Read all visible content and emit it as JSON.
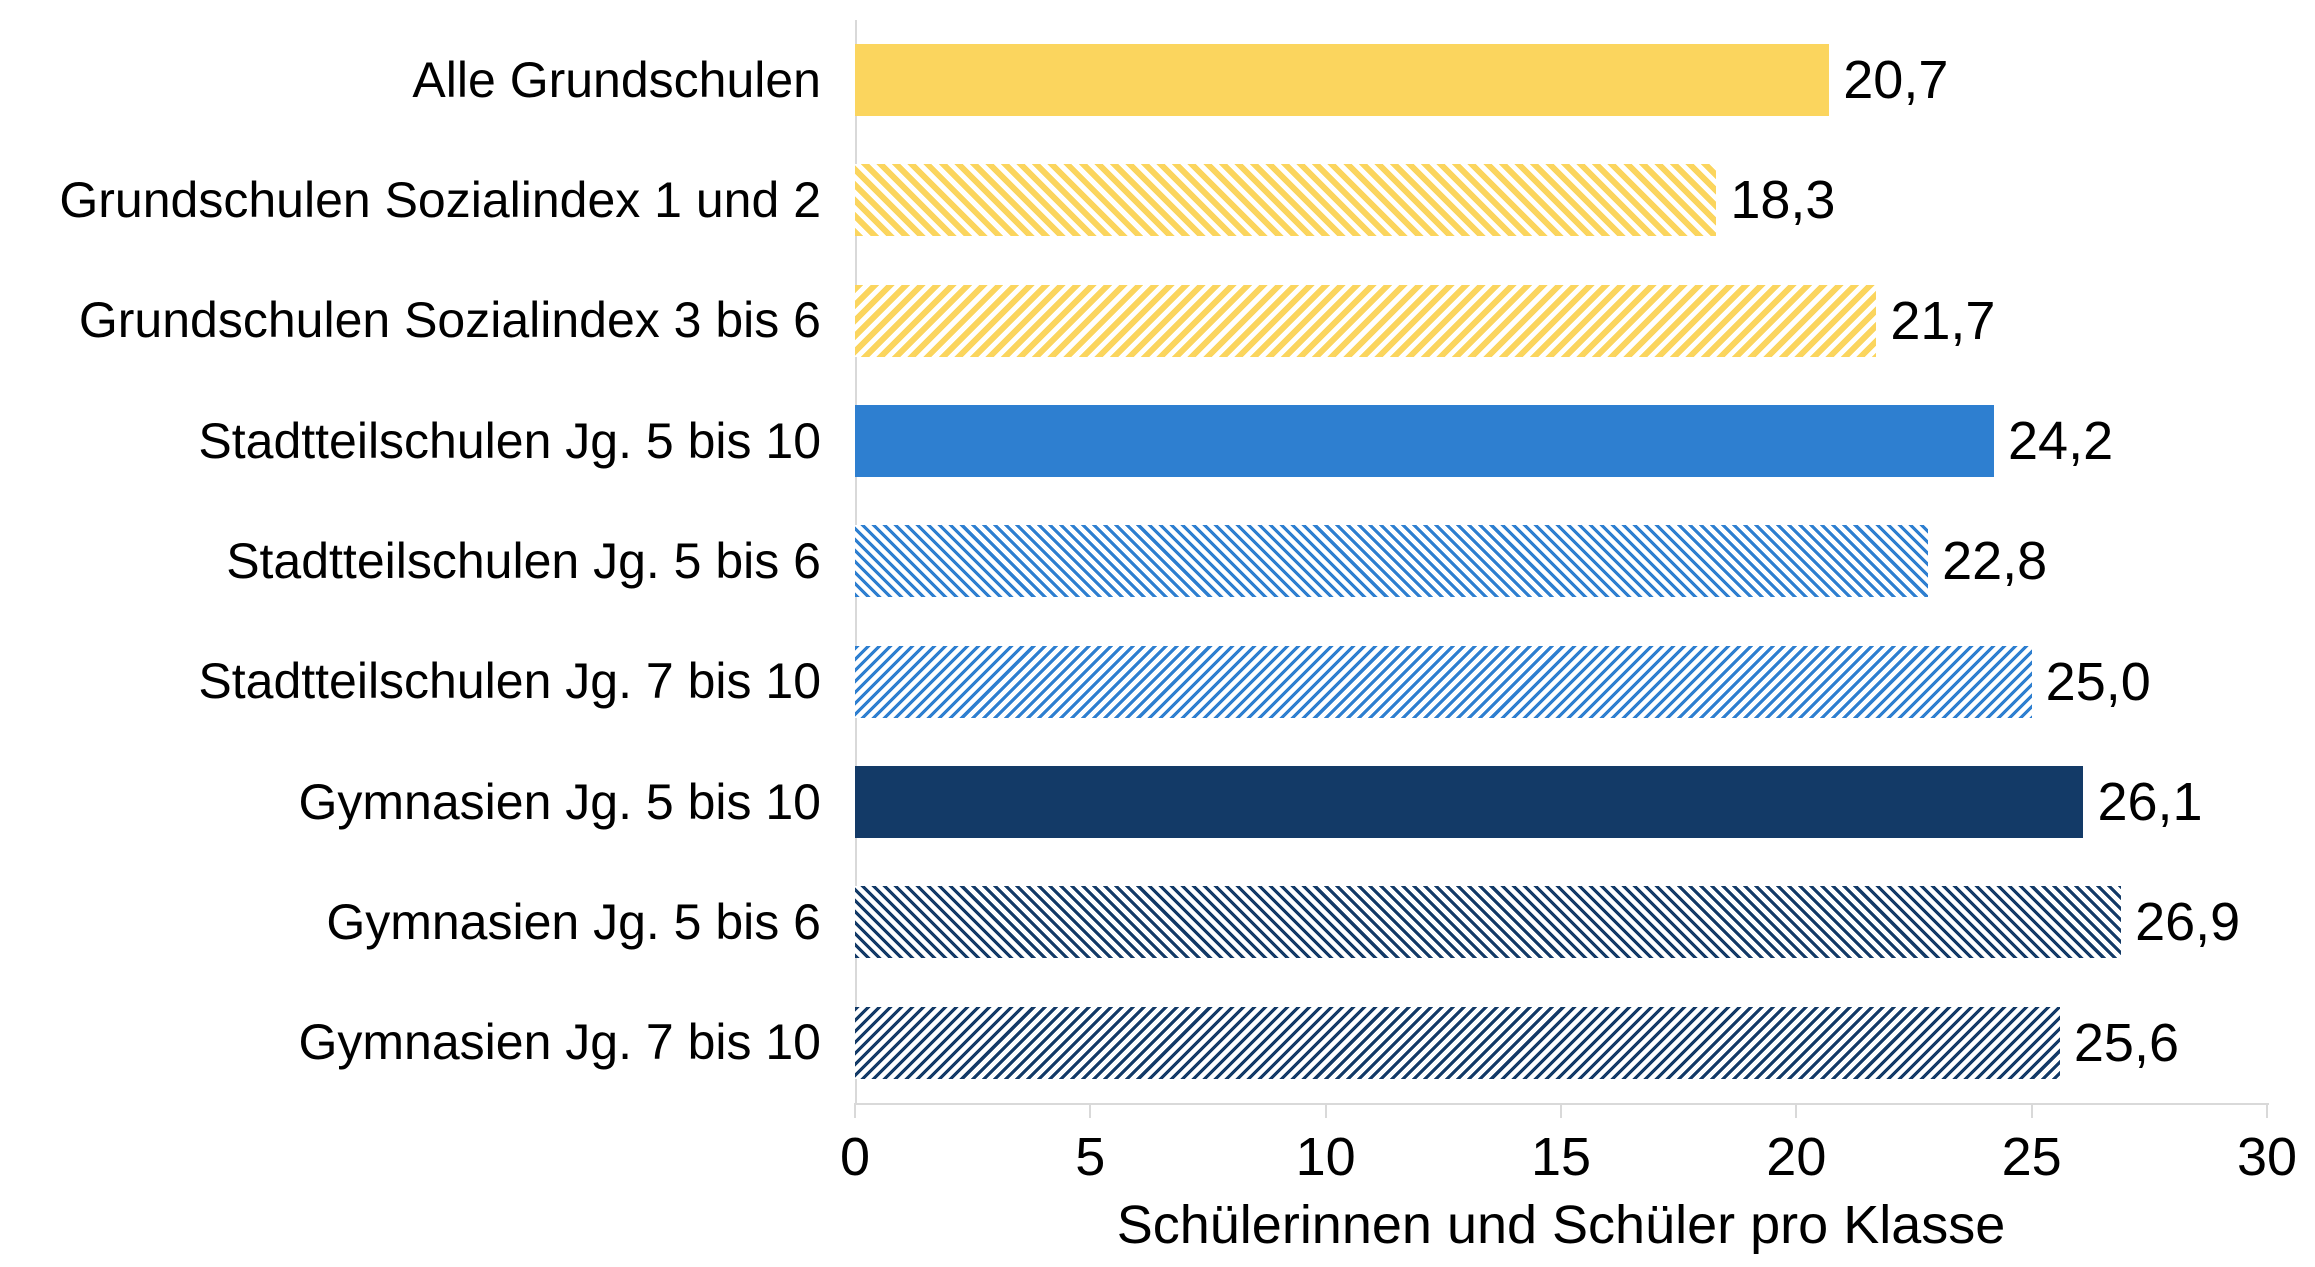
{
  "chart_data": {
    "type": "bar",
    "orientation": "horizontal",
    "title": "",
    "xlabel": "Schülerinnen und Schüler pro Klasse",
    "ylabel": "",
    "xlim": [
      0,
      30
    ],
    "x_ticks": [
      "0",
      "5",
      "10",
      "15",
      "20",
      "25",
      "30"
    ],
    "grid": false,
    "legend": "none",
    "categories": [
      "Alle Grundschulen",
      "Grundschulen Sozialindex 1 und 2",
      "Grundschulen Sozialindex 3 bis 6",
      "Stadtteilschulen Jg. 5 bis 10",
      "Stadtteilschulen Jg. 5 bis 6",
      "Stadtteilschulen Jg. 7 bis 10",
      "Gymnasien Jg. 5 bis 10",
      "Gymnasien Jg. 5 bis 6",
      "Gymnasien Jg. 7 bis 10"
    ],
    "values": [
      20.7,
      18.3,
      21.7,
      24.2,
      22.8,
      25.0,
      26.1,
      26.9,
      25.6
    ],
    "value_labels": [
      "20,7",
      "18,3",
      "21,7",
      "24,2",
      "22,8",
      "25,0",
      "26,1",
      "26,9",
      "25,6"
    ],
    "bar_styles": [
      {
        "color": "#FBD55E",
        "pattern": "solid"
      },
      {
        "color": "#FBD55E",
        "pattern": "hatch-down",
        "line": 6,
        "period": 11
      },
      {
        "color": "#FBD55E",
        "pattern": "hatch-up",
        "line": 6,
        "period": 11
      },
      {
        "color": "#2E7FD0",
        "pattern": "solid"
      },
      {
        "color": "#2E7FD0",
        "pattern": "hatch-down",
        "line": 3.2,
        "period": 7.8
      },
      {
        "color": "#2E7FD0",
        "pattern": "hatch-up",
        "line": 3.2,
        "period": 7.8
      },
      {
        "color": "#133A67",
        "pattern": "solid"
      },
      {
        "color": "#133A67",
        "pattern": "hatch-down",
        "line": 3.2,
        "period": 7.8
      },
      {
        "color": "#133A67",
        "pattern": "hatch-up",
        "line": 3.2,
        "period": 7.8
      }
    ],
    "colors": {
      "yellow": "#FBD55E",
      "blue": "#2E7FD0",
      "navy": "#133A67",
      "axis": "#D9D9D9",
      "text": "#000000",
      "background": "#FFFFFF"
    }
  }
}
